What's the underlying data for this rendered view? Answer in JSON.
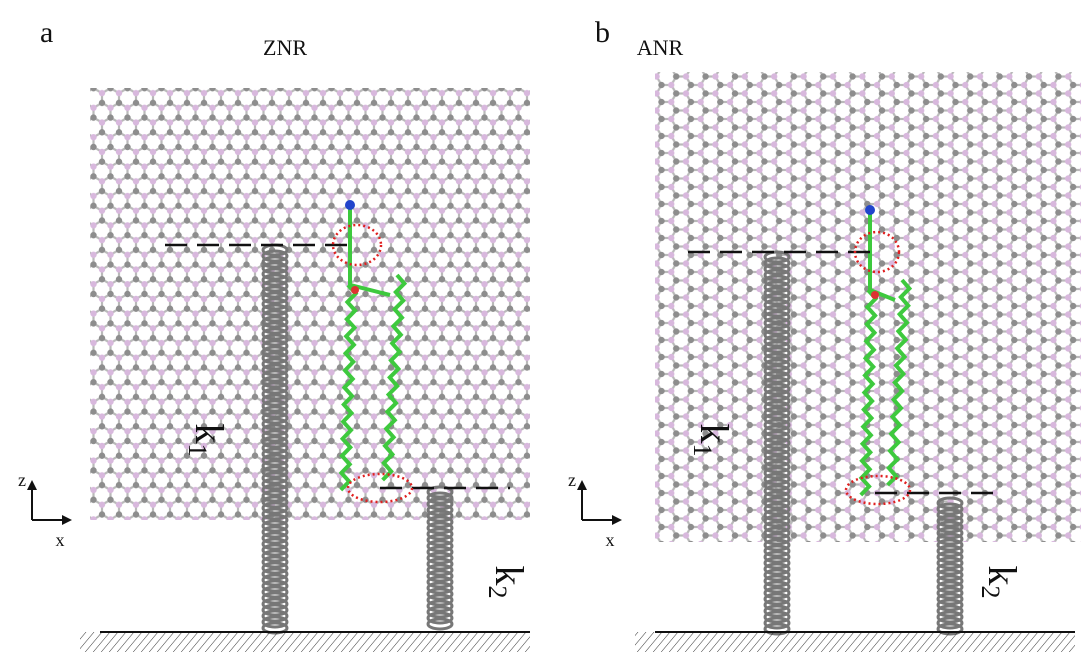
{
  "panels": [
    {
      "label": "a",
      "title": "ZNR",
      "k1": {
        "k": "k",
        "sub": "1"
      },
      "k2": {
        "k": "k",
        "sub": "2"
      },
      "axes": {
        "z": "z",
        "x": "x"
      }
    },
    {
      "label": "b",
      "title": "ANR",
      "k1": {
        "k": "k",
        "sub": "1"
      },
      "k2": {
        "k": "k",
        "sub": "2"
      },
      "axes": {
        "z": "z",
        "x": "x"
      }
    }
  ]
}
